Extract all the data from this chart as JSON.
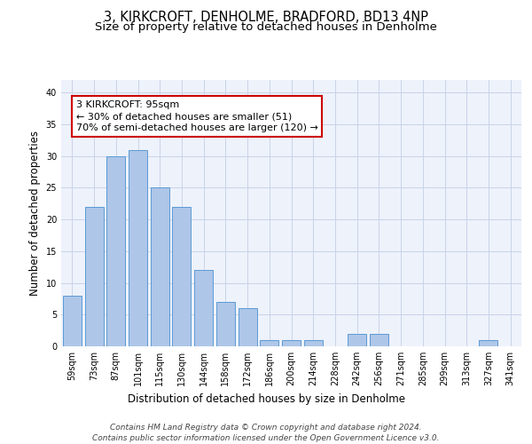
{
  "title": "3, KIRKCROFT, DENHOLME, BRADFORD, BD13 4NP",
  "subtitle": "Size of property relative to detached houses in Denholme",
  "xlabel": "Distribution of detached houses by size in Denholme",
  "ylabel": "Number of detached properties",
  "categories": [
    "59sqm",
    "73sqm",
    "87sqm",
    "101sqm",
    "115sqm",
    "130sqm",
    "144sqm",
    "158sqm",
    "172sqm",
    "186sqm",
    "200sqm",
    "214sqm",
    "228sqm",
    "242sqm",
    "256sqm",
    "271sqm",
    "285sqm",
    "299sqm",
    "313sqm",
    "327sqm",
    "341sqm"
  ],
  "values": [
    8,
    22,
    30,
    31,
    25,
    22,
    12,
    7,
    6,
    1,
    1,
    1,
    0,
    2,
    2,
    0,
    0,
    0,
    0,
    1,
    0
  ],
  "bar_color": "#aec6e8",
  "bar_edge_color": "#5b9bd5",
  "annotation_box_text": "3 KIRKCROFT: 95sqm\n← 30% of detached houses are smaller (51)\n70% of semi-detached houses are larger (120) →",
  "annotation_box_color": "#ffffff",
  "annotation_box_edge_color": "#cc0000",
  "footer_line1": "Contains HM Land Registry data © Crown copyright and database right 2024.",
  "footer_line2": "Contains public sector information licensed under the Open Government Licence v3.0.",
  "ylim": [
    0,
    42
  ],
  "yticks": [
    0,
    5,
    10,
    15,
    20,
    25,
    30,
    35,
    40
  ],
  "bg_color": "#eef2fb",
  "grid_color": "#c8d4e8",
  "title_fontsize": 10.5,
  "subtitle_fontsize": 9.5,
  "axis_label_fontsize": 8.5,
  "tick_fontsize": 7,
  "footer_fontsize": 6.5,
  "annotation_fontsize": 8
}
